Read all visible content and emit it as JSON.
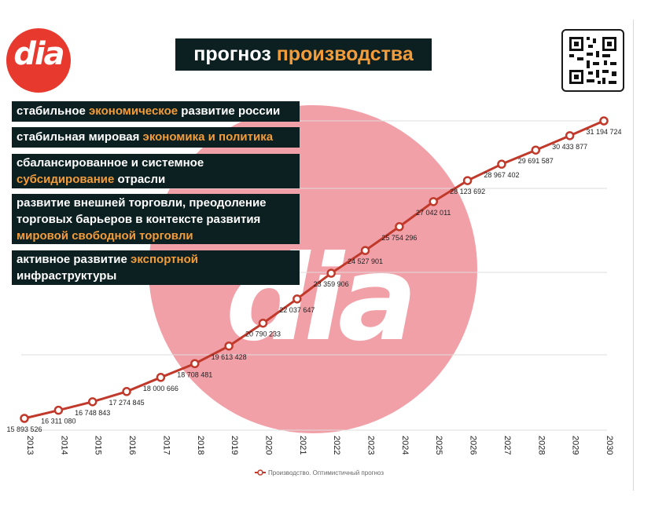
{
  "header": {
    "logo_text": "dia",
    "title_part1": "прогноз ",
    "title_part2": "производства"
  },
  "watermark": {
    "text": "dia"
  },
  "qr": {
    "icon": "qr-code-icon"
  },
  "bullets": [
    {
      "parts": [
        "стабильное ",
        "экономическое",
        " развитие россии"
      ]
    },
    {
      "parts": [
        "стабильная мировая ",
        "экономика и политика",
        ""
      ]
    },
    {
      "parts": [
        "сбалансированное и системное ",
        "субсидирование",
        " отрасли"
      ]
    },
    {
      "parts": [
        "развитие внешней торговли, преодоление торговых барьеров в контексте развития ",
        "мировой свободной торговли",
        ""
      ]
    },
    {
      "parts": [
        "активное развитие ",
        "экспортной",
        " инфраструктуры"
      ]
    }
  ],
  "colors": {
    "line": "#c0392b",
    "accent": "#f39c3a",
    "box": "#0c1f21",
    "watermark": "#f2a0a8"
  },
  "chart_data": {
    "type": "line",
    "title": "",
    "xlabel": "",
    "ylabel": "",
    "x": [
      "2013",
      "2014",
      "2015",
      "2016",
      "2017",
      "2018",
      "2019",
      "2020",
      "2021",
      "2022",
      "2023",
      "2024",
      "2025",
      "2026",
      "2027",
      "2028",
      "2029",
      "2030"
    ],
    "series": [
      {
        "name": "Производство. Оптимистичный прогноз",
        "values": [
          15893526,
          16311080,
          16748843,
          17274845,
          18000666,
          18708481,
          19613428,
          20790233,
          22037647,
          23359906,
          24527901,
          25754296,
          27042011,
          28123692,
          28967402,
          29691587,
          30433877,
          31194724
        ],
        "labels": [
          "15 893 526",
          "16 311 080",
          "16 748 843",
          "17 274 845",
          "18 000 666",
          "18 708 481",
          "19 613 428",
          "20 790 233",
          "22 037 647",
          "23 359 906",
          "24 527 901",
          "25 754 296",
          "27 042 011",
          "28 123 692",
          "28 967 402",
          "29 691 587",
          "30 433 877",
          "31 194 724"
        ]
      }
    ],
    "legend_position": "bottom-center",
    "grid": true
  }
}
